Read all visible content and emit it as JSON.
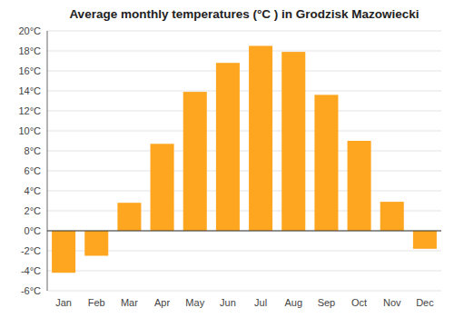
{
  "chart_data": {
    "type": "bar",
    "title": "Average monthly temperatures (°C ) in Grodzisk Mazowiecki",
    "categories": [
      "Jan",
      "Feb",
      "Mar",
      "Apr",
      "May",
      "Jun",
      "Jul",
      "Aug",
      "Sep",
      "Oct",
      "Nov",
      "Dec"
    ],
    "values": [
      -4.2,
      -2.5,
      2.8,
      8.7,
      13.9,
      16.8,
      18.5,
      17.9,
      13.6,
      9.0,
      2.9,
      -1.8
    ],
    "color": "#FFA620",
    "ylim": [
      -6,
      20
    ],
    "yticks": [
      {
        "value": -6,
        "label": "-6°C"
      },
      {
        "value": -4,
        "label": "-4°C"
      },
      {
        "value": -2,
        "label": "-2°C"
      },
      {
        "value": 0,
        "label": "0°C"
      },
      {
        "value": 2,
        "label": "2°C"
      },
      {
        "value": 4,
        "label": "4°C"
      },
      {
        "value": 6,
        "label": "6°C"
      },
      {
        "value": 8,
        "label": "8°C"
      },
      {
        "value": 10,
        "label": "10°C"
      },
      {
        "value": 12,
        "label": "12°C"
      },
      {
        "value": 14,
        "label": "14°C"
      },
      {
        "value": 16,
        "label": "16°C"
      },
      {
        "value": 18,
        "label": "18°C"
      },
      {
        "value": 20,
        "label": "20°C"
      }
    ],
    "grid": true
  }
}
